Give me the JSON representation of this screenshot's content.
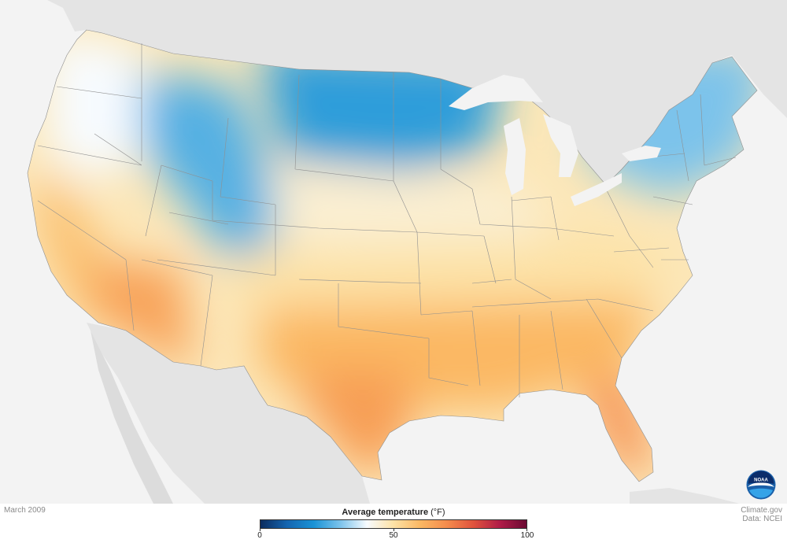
{
  "footer": {
    "date": "March 2009",
    "credit_line1": "Climate.gov",
    "credit_line2": "Data: NCEI"
  },
  "legend": {
    "title": "Average temperature",
    "unit": "(°F)",
    "min": 0,
    "mid": 50,
    "max": 100,
    "ticks": [
      "0",
      "50",
      "100"
    ],
    "colors": [
      "#0c2c5e",
      "#1565b0",
      "#1a93d6",
      "#7cc3eb",
      "#f7fbff",
      "#fde2a6",
      "#fbb863",
      "#f58c4c",
      "#e0533d",
      "#b01c48",
      "#6b0a33"
    ]
  },
  "logo": {
    "text": "NOAA",
    "colors": {
      "outer": "#1a5fa8",
      "inner": "#0b2d6b",
      "accent": "#35a3e8"
    }
  },
  "map": {
    "background": "#f3f3f3",
    "other_land_color": "#e2e2e2",
    "state_border_color": "#8f8f8f",
    "zones": [
      {
        "name": "north-cold-zone",
        "temp": 22
      },
      {
        "name": "rockies-cold-zone",
        "temp": 26
      },
      {
        "name": "northeast-cold-zone",
        "temp": 30
      },
      {
        "name": "pacific-nw-zone",
        "temp": 40
      },
      {
        "name": "central-mild-zone",
        "temp": 45
      },
      {
        "name": "central-neutral-zone",
        "temp": 50
      },
      {
        "name": "california-warm-zone",
        "temp": 58
      },
      {
        "name": "southern-warm-zone",
        "temp": 60
      },
      {
        "name": "southwest-desert-zone",
        "temp": 65
      },
      {
        "name": "texas-hot-zone",
        "temp": 66
      },
      {
        "name": "florida-hot-zone",
        "temp": 70
      }
    ]
  }
}
